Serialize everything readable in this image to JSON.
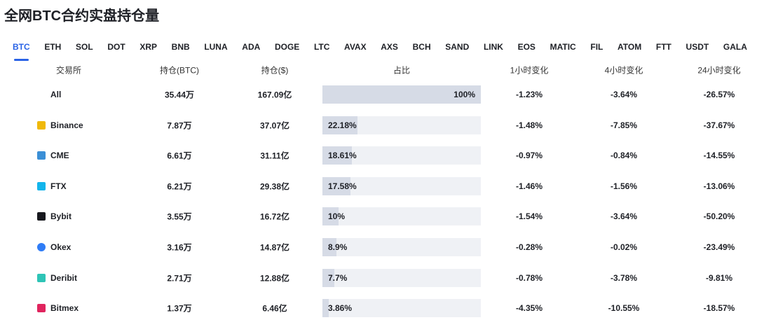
{
  "title": "全网BTC合约实盘持仓量",
  "tabs": [
    "BTC",
    "ETH",
    "SOL",
    "DOT",
    "XRP",
    "BNB",
    "LUNA",
    "ADA",
    "DOGE",
    "LTC",
    "AVAX",
    "AXS",
    "BCH",
    "SAND",
    "LINK",
    "EOS",
    "MATIC",
    "FIL",
    "ATOM",
    "FTT",
    "USDT",
    "GALA"
  ],
  "table": {
    "header": [
      "交易所",
      "持仓(BTC)",
      "持仓($)",
      "占比",
      "1小时变化",
      "4小时变化",
      "24小时变化"
    ],
    "rows": [
      {
        "exchange": "All",
        "btc": "35.44万",
        "usd": "167.09亿",
        "share": {
          "value": 100,
          "label": "100%"
        },
        "h1": "-1.23%",
        "h4": "-3.64%",
        "h24": "-26.57%"
      },
      {
        "exchange": "Binance",
        "btc": "7.87万",
        "usd": "37.07亿",
        "share": {
          "value": 22.18,
          "label": "22.18%"
        },
        "h1": "-1.48%",
        "h4": "-7.85%",
        "h24": "-37.67%"
      },
      {
        "exchange": "CME",
        "btc": "6.61万",
        "usd": "31.11亿",
        "share": {
          "value": 18.61,
          "label": "18.61%"
        },
        "h1": "-0.97%",
        "h4": "-0.84%",
        "h24": "-14.55%"
      },
      {
        "exchange": "FTX",
        "btc": "6.21万",
        "usd": "29.38亿",
        "share": {
          "value": 17.58,
          "label": "17.58%"
        },
        "h1": "-1.46%",
        "h4": "-1.56%",
        "h24": "-13.06%"
      },
      {
        "exchange": "Bybit",
        "btc": "3.55万",
        "usd": "16.72亿",
        "share": {
          "value": 10,
          "label": "10%"
        },
        "h1": "-1.54%",
        "h4": "-3.64%",
        "h24": "-50.20%"
      },
      {
        "exchange": "Okex",
        "btc": "3.16万",
        "usd": "14.87亿",
        "share": {
          "value": 8.9,
          "label": "8.9%"
        },
        "h1": "-0.28%",
        "h4": "-0.02%",
        "h24": "-23.49%"
      },
      {
        "exchange": "Deribit",
        "btc": "2.71万",
        "usd": "12.88亿",
        "share": {
          "value": 7.7,
          "label": "7.7%"
        },
        "h1": "-0.78%",
        "h4": "-3.78%",
        "h24": "-9.81%"
      },
      {
        "exchange": "Bitmex",
        "btc": "1.37万",
        "usd": "6.46亿",
        "share": {
          "value": 3.86,
          "label": "3.86%"
        },
        "h1": "-4.35%",
        "h4": "-10.55%",
        "h24": "-18.57%"
      }
    ]
  }
}
